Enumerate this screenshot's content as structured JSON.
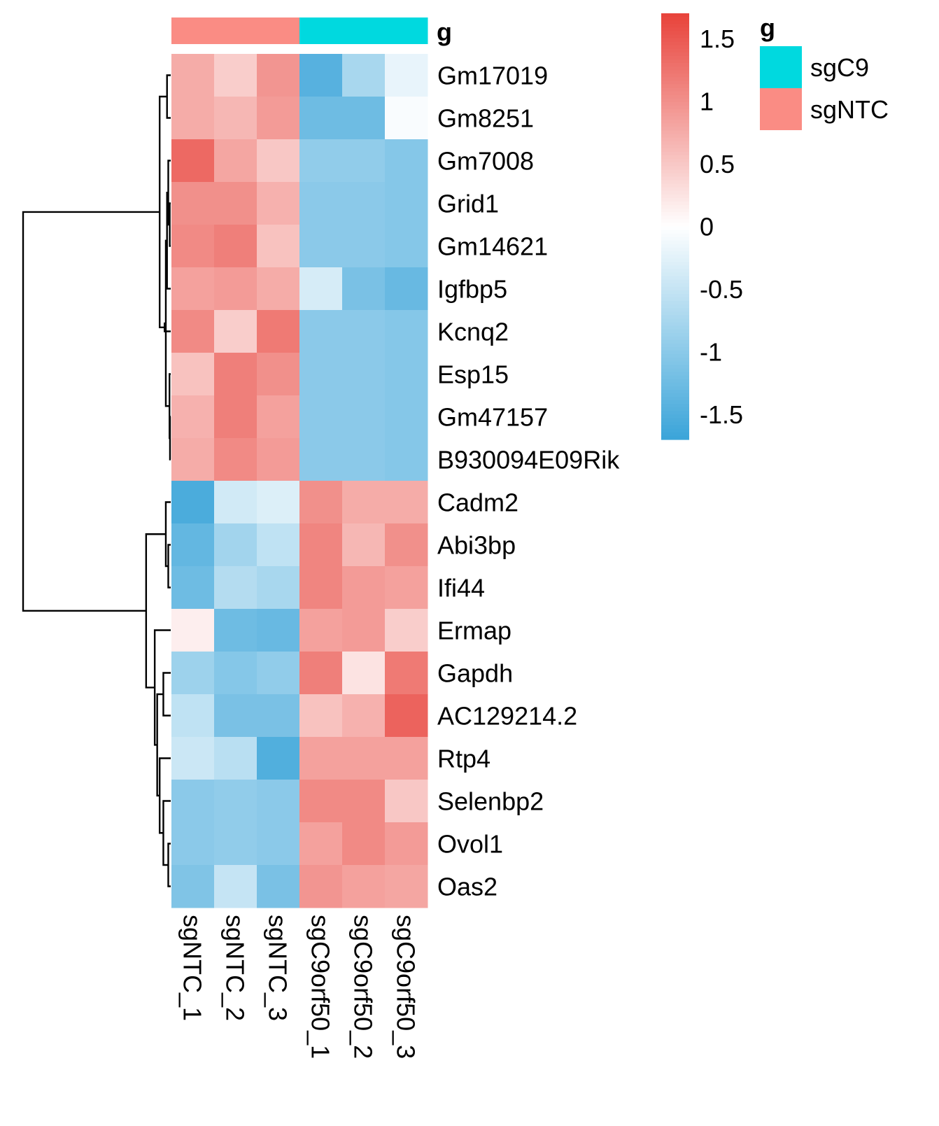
{
  "chart_data": {
    "type": "heatmap",
    "rows": [
      "Gm17019",
      "Gm8251",
      "Gm7008",
      "Grid1",
      "Gm14621",
      "Igfbp5",
      "Kcnq2",
      "Esp15",
      "Gm47157",
      "B930094E09Rik",
      "Cadm2",
      "Abi3bp",
      "Ifi44",
      "Ermap",
      "Gapdh",
      "AC129214.2",
      "Rtp4",
      "Selenbp2",
      "Ovol1",
      "Oas2"
    ],
    "columns": [
      "sgNTC_1",
      "sgNTC_2",
      "sgNTC_3",
      "sgC9orf50_1",
      "sgC9orf50_2",
      "sgC9orf50_3"
    ],
    "column_groups": [
      "sgNTC",
      "sgNTC",
      "sgNTC",
      "sgC9",
      "sgC9",
      "sgC9"
    ],
    "values": [
      [
        0.75,
        0.45,
        0.95,
        -1.45,
        -0.75,
        -0.2
      ],
      [
        0.75,
        0.65,
        0.9,
        -1.25,
        -1.25,
        -0.05
      ],
      [
        1.35,
        0.8,
        0.5,
        -0.95,
        -0.95,
        -1.05
      ],
      [
        1.0,
        1.0,
        0.7,
        -1.0,
        -1.0,
        -1.05
      ],
      [
        1.05,
        1.15,
        0.55,
        -1.0,
        -1.0,
        -1.05
      ],
      [
        0.85,
        0.9,
        0.75,
        -0.35,
        -1.15,
        -1.3
      ],
      [
        1.05,
        0.45,
        1.2,
        -1.0,
        -1.0,
        -1.05
      ],
      [
        0.55,
        1.15,
        1.0,
        -1.0,
        -1.0,
        -1.05
      ],
      [
        0.7,
        1.15,
        0.85,
        -1.0,
        -1.0,
        -1.05
      ],
      [
        0.75,
        1.05,
        0.9,
        -1.0,
        -1.0,
        -1.05
      ],
      [
        -1.55,
        -0.4,
        -0.3,
        1.0,
        0.75,
        0.75
      ],
      [
        -1.35,
        -0.8,
        -0.55,
        1.1,
        0.65,
        1.0
      ],
      [
        -1.25,
        -0.65,
        -0.75,
        1.1,
        0.9,
        0.85
      ],
      [
        0.15,
        -1.25,
        -1.3,
        0.85,
        0.9,
        0.45
      ],
      [
        -0.85,
        -1.05,
        -0.95,
        1.15,
        0.25,
        1.2
      ],
      [
        -0.55,
        -1.15,
        -1.15,
        0.55,
        0.7,
        1.4
      ],
      [
        -0.45,
        -0.6,
        -1.5,
        0.85,
        0.85,
        0.85
      ],
      [
        -1.0,
        -0.95,
        -1.0,
        1.05,
        1.05,
        0.5
      ],
      [
        -1.0,
        -0.95,
        -1.0,
        0.85,
        1.05,
        0.9
      ],
      [
        -1.1,
        -0.5,
        -1.15,
        0.95,
        0.85,
        0.8
      ]
    ],
    "color_scale": {
      "min": -1.7,
      "max": 1.7,
      "low_color": "#3aa4d9",
      "mid_color": "#ffffff",
      "high_color": "#e8423a",
      "ticks": [
        1.5,
        1,
        0.5,
        0,
        -0.5,
        -1,
        -1.5
      ],
      "tick_labels": [
        "1.5",
        "1",
        "0.5",
        "0",
        "-0.5",
        "-1",
        "-1.5"
      ]
    },
    "annotation": {
      "title": "g",
      "levels": [
        {
          "name": "sgC9",
          "color": "#00d9df"
        },
        {
          "name": "sgNTC",
          "color": "#fa8c84"
        }
      ]
    },
    "row_dendrogram": true,
    "grid": false
  }
}
